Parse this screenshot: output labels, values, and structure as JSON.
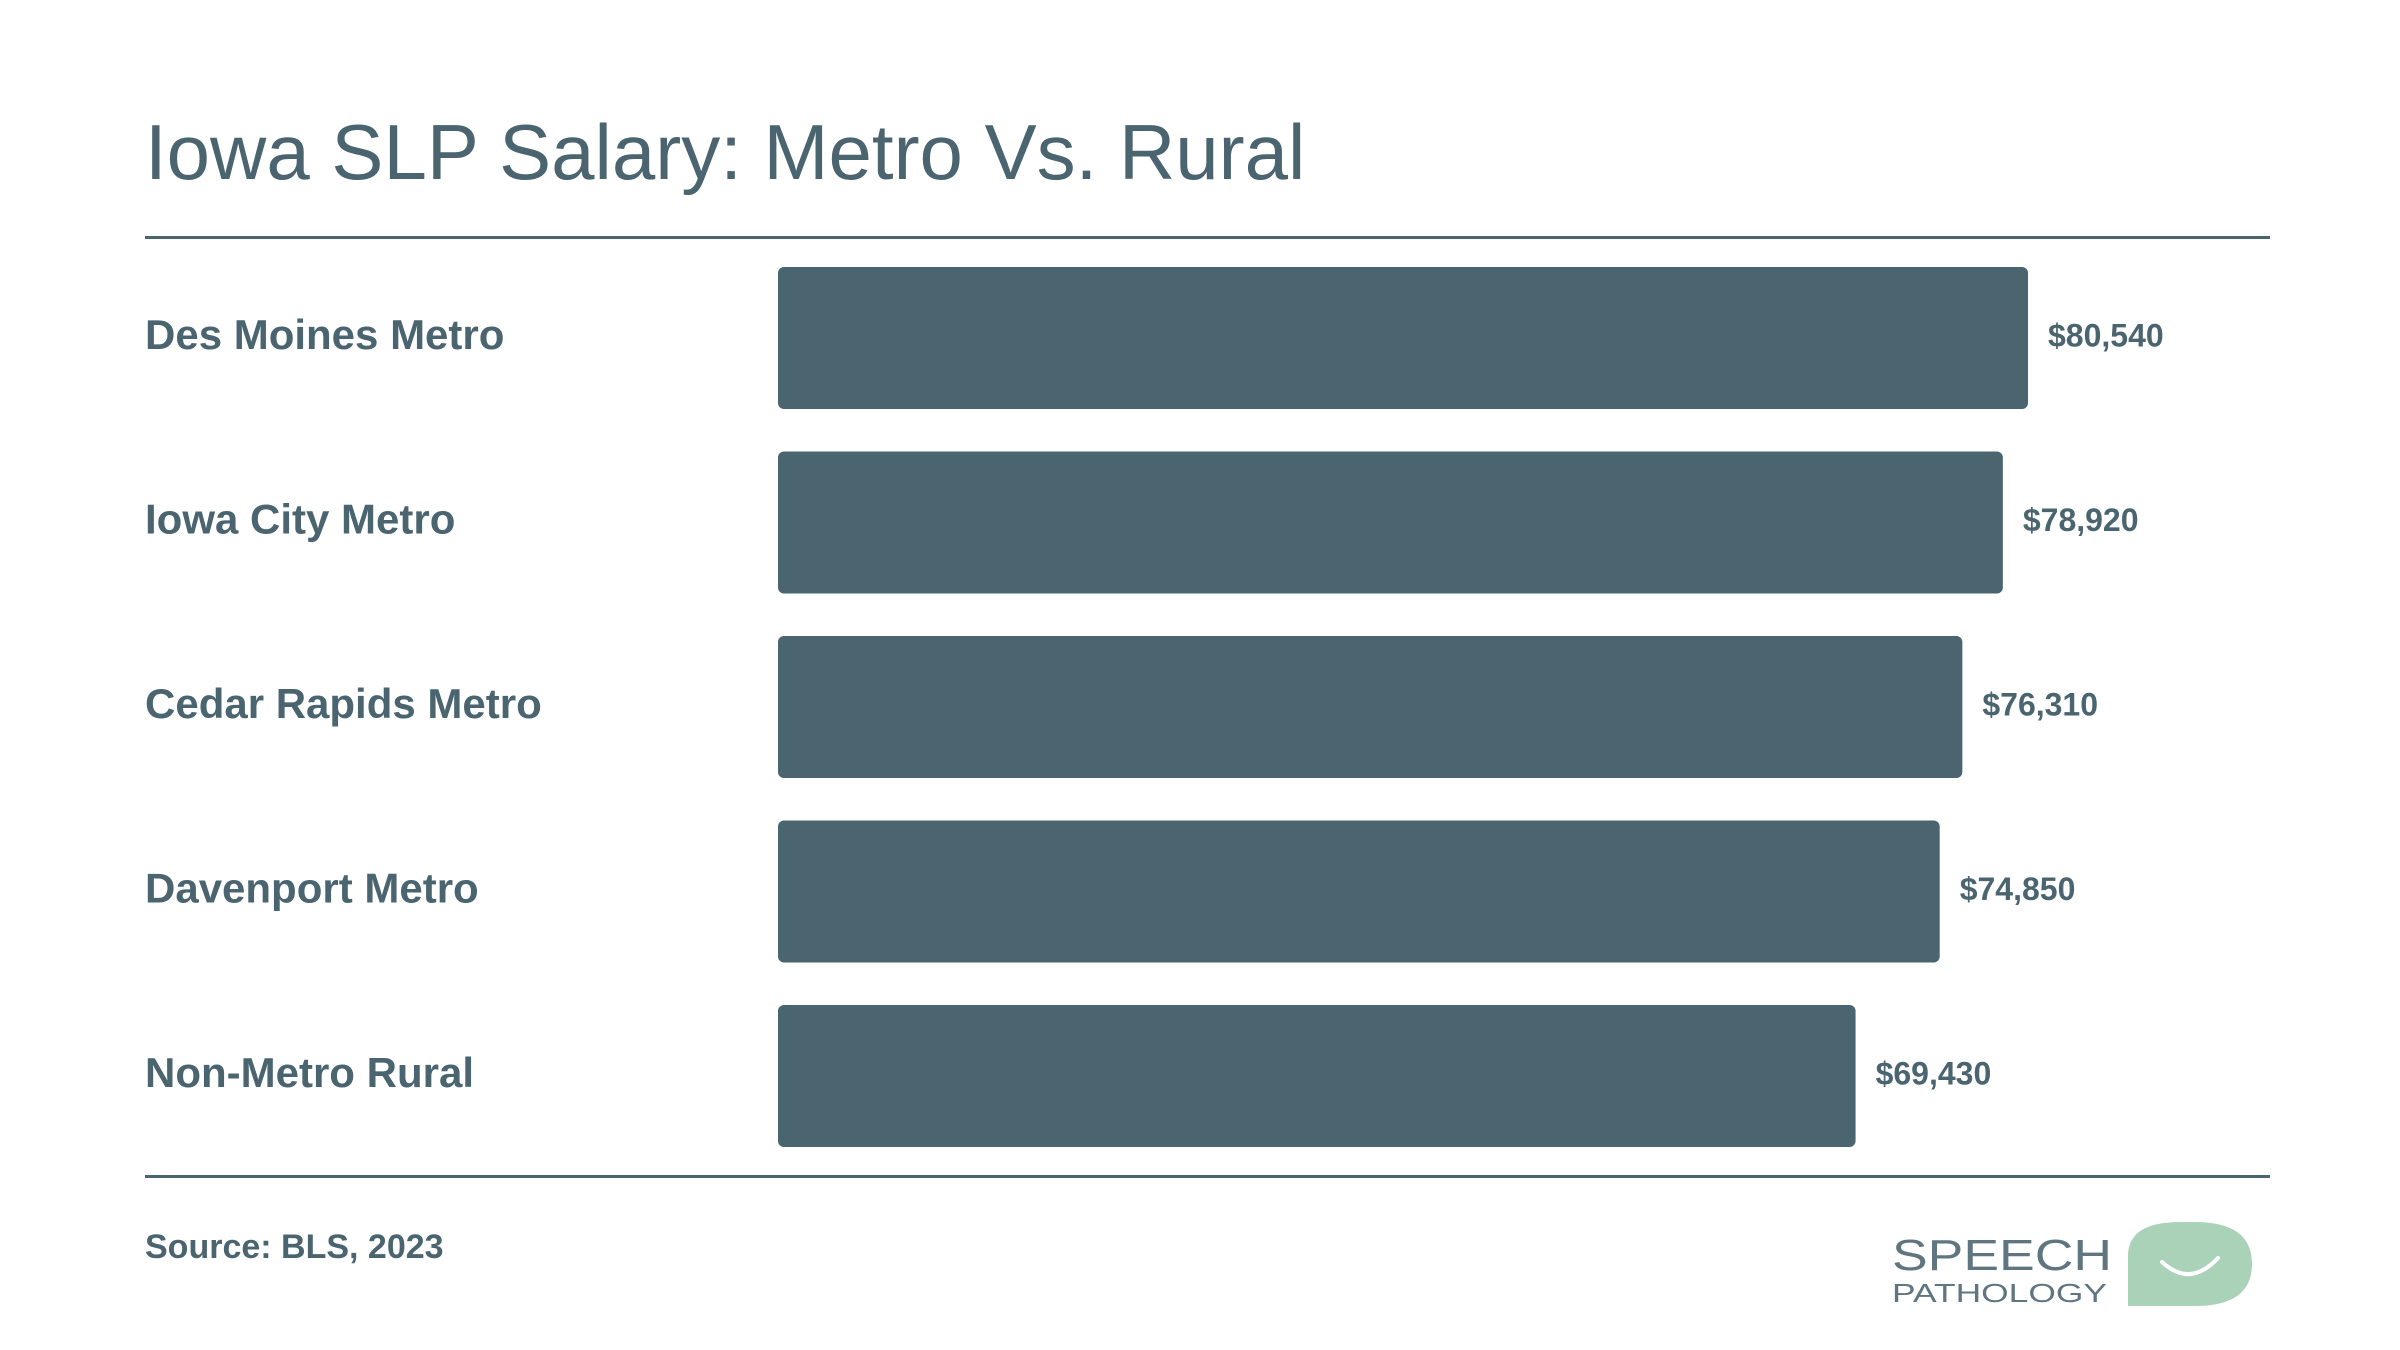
{
  "title": "Iowa SLP Salary: Metro Vs. Rural",
  "source": "Source: BLS, 2023",
  "logo": {
    "text_line1": "SPEECH",
    "text_line2": "PATHOLOGY",
    "icon": "speech-bubble-smile-icon"
  },
  "colors": {
    "bar": "#4a6470",
    "text": "#4a6470",
    "logo_text": "#5f7580",
    "logo_bubble": "#a9d2b8"
  },
  "chart_data": {
    "type": "bar",
    "orientation": "horizontal",
    "categories": [
      "Des Moines Metro",
      "Iowa City Metro",
      "Cedar Rapids Metro",
      "Davenport Metro",
      "Non-Metro Rural"
    ],
    "values": [
      80540,
      78920,
      76310,
      74850,
      69430
    ],
    "value_labels": [
      "$80,540",
      "$78,920",
      "$76,310",
      "$74,850",
      "$69,430"
    ],
    "title": "Iowa SLP Salary: Metro Vs. Rural",
    "xlabel": "",
    "ylabel": "",
    "xlim": [
      0,
      80540
    ],
    "grid": false,
    "legend": "none"
  }
}
